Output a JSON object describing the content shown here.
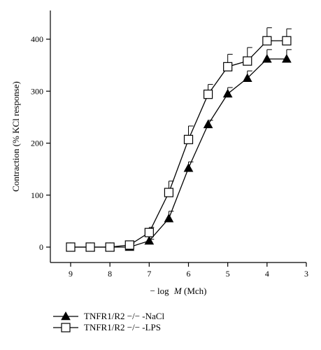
{
  "chart_data": {
    "type": "line",
    "xlabel_prefix": "− log",
    "xlabel_var": "M",
    "xlabel_suffix": " (Mch)",
    "ylabel": "Contraction (% KCl response)",
    "xlim": [
      9,
      3
    ],
    "ylim": [
      0,
      400
    ],
    "xticks": [
      9,
      8,
      7,
      6,
      5,
      4,
      3
    ],
    "yticks": [
      0,
      100,
      200,
      300,
      400
    ],
    "x": [
      9,
      8.5,
      8,
      7.5,
      7,
      6.5,
      6,
      5.5,
      5,
      4.5,
      4,
      3.5
    ],
    "grid": false,
    "legend_position": "bottom-left",
    "series": [
      {
        "name": "TNFR1/R2 −/− -NaCl",
        "marker": "filled-triangle",
        "color": "#000000",
        "values": [
          0,
          0,
          0,
          0,
          12,
          55,
          152,
          236,
          295,
          325,
          362,
          362
        ],
        "errors": [
          0,
          0,
          0,
          0,
          3,
          14,
          12,
          8,
          12,
          14,
          18,
          18
        ]
      },
      {
        "name": "TNFR1/R2 −/− -LPS",
        "marker": "open-square",
        "color": "#000000",
        "values": [
          0,
          0,
          0,
          4,
          28,
          105,
          207,
          294,
          347,
          358,
          397,
          397
        ],
        "errors": [
          0,
          0,
          0,
          3,
          10,
          22,
          26,
          19,
          24,
          26,
          25,
          23
        ]
      }
    ]
  }
}
